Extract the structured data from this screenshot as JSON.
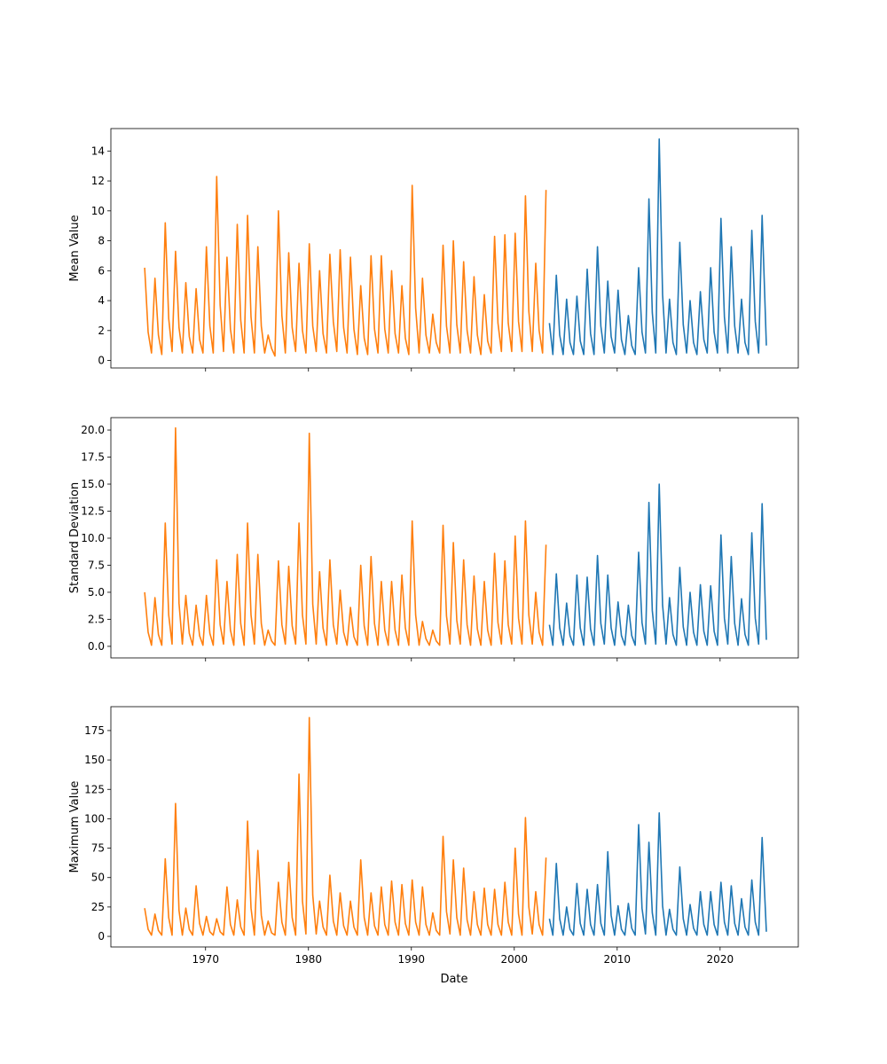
{
  "chart_data": {
    "type": "line",
    "xlabel": "Date",
    "xlim": [
      1960.8,
      2027.6
    ],
    "x_ticks": [
      "1970",
      "1980",
      "1990",
      "2000",
      "2010",
      "2020"
    ],
    "grid": false,
    "segments": [
      {
        "color": "#ff7f0e",
        "x": [
          "1964-02",
          "1964-06",
          "1964-10",
          "1965-02",
          "1965-06",
          "1965-10",
          "1966-02",
          "1966-06",
          "1966-10",
          "1967-02",
          "1967-06",
          "1967-10",
          "1968-02",
          "1968-06",
          "1968-10",
          "1969-02",
          "1969-06",
          "1969-10",
          "1970-02",
          "1970-06",
          "1970-10",
          "1971-02",
          "1971-06",
          "1971-10",
          "1972-02",
          "1972-06",
          "1972-10",
          "1973-02",
          "1973-06",
          "1973-10",
          "1974-02",
          "1974-06",
          "1974-10",
          "1975-02",
          "1975-06",
          "1975-10",
          "1976-02",
          "1976-06",
          "1976-10",
          "1977-02",
          "1977-06",
          "1977-10",
          "1978-02",
          "1978-06",
          "1978-10",
          "1979-02",
          "1979-06",
          "1979-10",
          "1980-02",
          "1980-06",
          "1980-10",
          "1981-02",
          "1981-06",
          "1981-10",
          "1982-02",
          "1982-06",
          "1982-10",
          "1983-02",
          "1983-06",
          "1983-10",
          "1984-02",
          "1984-06",
          "1984-10",
          "1985-02",
          "1985-06",
          "1985-10",
          "1986-02",
          "1986-06",
          "1986-10",
          "1987-02",
          "1987-06",
          "1987-10",
          "1988-02",
          "1988-06",
          "1988-10",
          "1989-02",
          "1989-06",
          "1989-10",
          "1990-02",
          "1990-06",
          "1990-10",
          "1991-02",
          "1991-06",
          "1991-10",
          "1992-02",
          "1992-06",
          "1992-10",
          "1993-02",
          "1993-06",
          "1993-10",
          "1994-02",
          "1994-06",
          "1994-10",
          "1995-02",
          "1995-06",
          "1995-10",
          "1996-02",
          "1996-06",
          "1996-10",
          "1997-02",
          "1997-06",
          "1997-10",
          "1998-02",
          "1998-06",
          "1998-10",
          "1999-02",
          "1999-06",
          "1999-10",
          "2000-02",
          "2000-06",
          "2000-10",
          "2001-02",
          "2001-06",
          "2001-10",
          "2002-02",
          "2002-06",
          "2002-10",
          "2003-02"
        ]
      },
      {
        "color": "#1f77b4",
        "x": [
          "2003-06",
          "2003-10",
          "2004-02",
          "2004-06",
          "2004-10",
          "2005-02",
          "2005-06",
          "2005-10",
          "2006-02",
          "2006-06",
          "2006-10",
          "2007-02",
          "2007-06",
          "2007-10",
          "2008-02",
          "2008-06",
          "2008-10",
          "2009-02",
          "2009-06",
          "2009-10",
          "2010-02",
          "2010-06",
          "2010-10",
          "2011-02",
          "2011-06",
          "2011-10",
          "2012-02",
          "2012-06",
          "2012-10",
          "2013-02",
          "2013-06",
          "2013-10",
          "2014-02",
          "2014-06",
          "2014-10",
          "2015-02",
          "2015-06",
          "2015-10",
          "2016-02",
          "2016-06",
          "2016-10",
          "2017-02",
          "2017-06",
          "2017-10",
          "2018-02",
          "2018-06",
          "2018-10",
          "2019-02",
          "2019-06",
          "2019-10",
          "2020-02",
          "2020-06",
          "2020-10",
          "2021-02",
          "2021-06",
          "2021-10",
          "2022-02",
          "2022-06",
          "2022-10",
          "2023-02",
          "2023-06",
          "2023-10",
          "2024-02",
          "2024-07"
        ]
      }
    ],
    "panels": [
      {
        "ylabel": "Mean Value",
        "ylim": [
          -0.5,
          15.5
        ],
        "y_ticks": [
          "0",
          "2",
          "4",
          "6",
          "8",
          "10",
          "12",
          "14"
        ],
        "y_tick_values": [
          0,
          2,
          4,
          6,
          8,
          10,
          12,
          14
        ],
        "values": [
          [
            6.2,
            1.9,
            0.5,
            5.5,
            1.7,
            0.4,
            9.2,
            2.8,
            0.6,
            7.3,
            2.2,
            0.5,
            5.2,
            1.6,
            0.5,
            4.8,
            1.4,
            0.5,
            7.6,
            2.3,
            0.5,
            12.3,
            3.7,
            0.6,
            6.9,
            2.1,
            0.5,
            9.1,
            2.7,
            0.5,
            9.7,
            2.9,
            0.5,
            7.6,
            2.3,
            0.5,
            1.7,
            0.8,
            0.3,
            10.0,
            3.0,
            0.5,
            7.2,
            2.2,
            0.6,
            6.5,
            2.0,
            0.5,
            7.8,
            2.3,
            0.6,
            6.0,
            1.8,
            0.5,
            7.1,
            2.6,
            0.6,
            7.4,
            2.2,
            0.5,
            6.9,
            2.1,
            0.4,
            5.0,
            1.5,
            0.4,
            7.0,
            2.1,
            0.5,
            7.0,
            2.1,
            0.5,
            6.0,
            1.8,
            0.5,
            5.0,
            1.5,
            0.4,
            11.7,
            3.5,
            0.5,
            5.5,
            1.7,
            0.5,
            3.1,
            1.2,
            0.5,
            7.7,
            2.3,
            0.5,
            8.0,
            2.4,
            0.5,
            6.6,
            2.0,
            0.5,
            5.6,
            1.7,
            0.4,
            4.4,
            1.3,
            0.5,
            8.3,
            2.5,
            0.6,
            8.4,
            2.5,
            0.6,
            8.5,
            2.6,
            0.6,
            11.0,
            3.3,
            0.6,
            6.5,
            2.0,
            0.5,
            11.4
          ],
          [
            2.5,
            0.4,
            5.7,
            1.7,
            0.4,
            4.1,
            1.2,
            0.4,
            4.3,
            1.3,
            0.4,
            6.1,
            1.8,
            0.4,
            7.6,
            2.3,
            0.5,
            5.3,
            1.6,
            0.5,
            4.7,
            1.4,
            0.4,
            3.0,
            1.0,
            0.4,
            6.2,
            1.9,
            0.5,
            10.8,
            3.2,
            0.5,
            14.8,
            4.4,
            0.5,
            4.1,
            1.2,
            0.4,
            7.9,
            2.4,
            0.5,
            4.0,
            1.2,
            0.4,
            4.6,
            1.4,
            0.5,
            6.2,
            1.9,
            0.5,
            9.5,
            2.9,
            0.5,
            7.6,
            2.3,
            0.5,
            4.1,
            1.2,
            0.4,
            8.7,
            2.6,
            0.5,
            9.7,
            1.0
          ]
        ]
      },
      {
        "ylabel": "Standard Deviation",
        "ylim": [
          -1.07,
          21.15
        ],
        "y_ticks": [
          "0.0",
          "2.5",
          "5.0",
          "7.5",
          "10.0",
          "12.5",
          "15.0",
          "17.5",
          "20.0"
        ],
        "y_tick_values": [
          0,
          2.5,
          5,
          7.5,
          10,
          12.5,
          15,
          17.5,
          20
        ],
        "values": [
          [
            5.0,
            1.3,
            0.1,
            4.5,
            1.1,
            0.1,
            11.4,
            2.9,
            0.2,
            20.2,
            4.0,
            0.2,
            4.7,
            1.2,
            0.1,
            3.8,
            1.0,
            0.1,
            4.7,
            1.2,
            0.1,
            8.0,
            2.0,
            0.2,
            6.0,
            1.5,
            0.1,
            8.5,
            2.1,
            0.1,
            11.4,
            2.9,
            0.2,
            8.5,
            2.1,
            0.1,
            1.5,
            0.5,
            0.1,
            7.9,
            2.0,
            0.2,
            7.4,
            1.9,
            0.2,
            11.4,
            2.9,
            0.2,
            19.7,
            3.9,
            0.2,
            6.9,
            1.7,
            0.1,
            8.0,
            2.0,
            0.2,
            5.2,
            1.3,
            0.1,
            3.6,
            0.9,
            0.1,
            7.5,
            1.9,
            0.1,
            8.3,
            2.1,
            0.1,
            6.0,
            1.5,
            0.1,
            6.0,
            1.5,
            0.1,
            6.6,
            1.7,
            0.1,
            11.6,
            2.9,
            0.1,
            2.3,
            0.7,
            0.1,
            1.5,
            0.5,
            0.1,
            11.2,
            2.8,
            0.2,
            9.6,
            2.4,
            0.2,
            8.0,
            2.0,
            0.1,
            6.5,
            1.6,
            0.1,
            6.0,
            1.5,
            0.1,
            8.6,
            2.2,
            0.2,
            7.9,
            2.0,
            0.2,
            10.2,
            2.6,
            0.2,
            11.6,
            2.9,
            0.2,
            5.0,
            1.3,
            0.1,
            9.4
          ],
          [
            2.0,
            0.1,
            6.7,
            1.7,
            0.1,
            4.0,
            1.0,
            0.1,
            6.6,
            1.7,
            0.1,
            6.4,
            1.6,
            0.1,
            8.4,
            2.1,
            0.2,
            6.6,
            1.7,
            0.1,
            4.1,
            1.0,
            0.1,
            3.8,
            1.0,
            0.1,
            8.7,
            2.2,
            0.2,
            13.3,
            3.3,
            0.2,
            15.0,
            3.8,
            0.2,
            4.5,
            1.1,
            0.1,
            7.3,
            1.8,
            0.1,
            5.0,
            1.3,
            0.1,
            5.7,
            1.4,
            0.1,
            5.6,
            1.4,
            0.1,
            10.3,
            2.6,
            0.2,
            8.3,
            2.1,
            0.1,
            4.4,
            1.1,
            0.1,
            10.5,
            2.6,
            0.2,
            13.2,
            0.6
          ]
        ]
      },
      {
        "ylabel": "Maximum Value",
        "ylim": [
          -9,
          195.3
        ],
        "y_ticks": [
          "0",
          "25",
          "50",
          "75",
          "100",
          "125",
          "150",
          "175"
        ],
        "y_tick_values": [
          0,
          25,
          50,
          75,
          100,
          125,
          150,
          175
        ],
        "values": [
          [
            24,
            6,
            1,
            19,
            5,
            1,
            66,
            16,
            1,
            113,
            22,
            1,
            24,
            6,
            1,
            43,
            11,
            1,
            17,
            4,
            1,
            15,
            4,
            1,
            42,
            10,
            1,
            31,
            8,
            1,
            98,
            24,
            1,
            73,
            18,
            1,
            13,
            3,
            1,
            46,
            12,
            1,
            63,
            16,
            1,
            138,
            30,
            2,
            186,
            35,
            2,
            30,
            8,
            1,
            52,
            13,
            1,
            37,
            9,
            1,
            30,
            8,
            1,
            65,
            16,
            1,
            37,
            9,
            1,
            42,
            10,
            1,
            47,
            12,
            1,
            44,
            11,
            1,
            48,
            12,
            1,
            42,
            10,
            1,
            20,
            5,
            1,
            85,
            21,
            2,
            65,
            16,
            1,
            58,
            14,
            1,
            38,
            10,
            1,
            41,
            10,
            1,
            40,
            10,
            1,
            46,
            12,
            1,
            75,
            19,
            1,
            101,
            25,
            2,
            38,
            10,
            1,
            67
          ],
          [
            15,
            1,
            62,
            15,
            1,
            25,
            6,
            1,
            45,
            11,
            1,
            40,
            10,
            1,
            44,
            11,
            1,
            72,
            18,
            1,
            26,
            6,
            1,
            28,
            7,
            1,
            95,
            24,
            2,
            80,
            20,
            1,
            105,
            26,
            1,
            23,
            6,
            1,
            59,
            15,
            1,
            27,
            7,
            1,
            38,
            10,
            1,
            38,
            10,
            1,
            46,
            12,
            1,
            43,
            11,
            1,
            32,
            8,
            1,
            48,
            12,
            1,
            84,
            4
          ]
        ]
      }
    ]
  }
}
